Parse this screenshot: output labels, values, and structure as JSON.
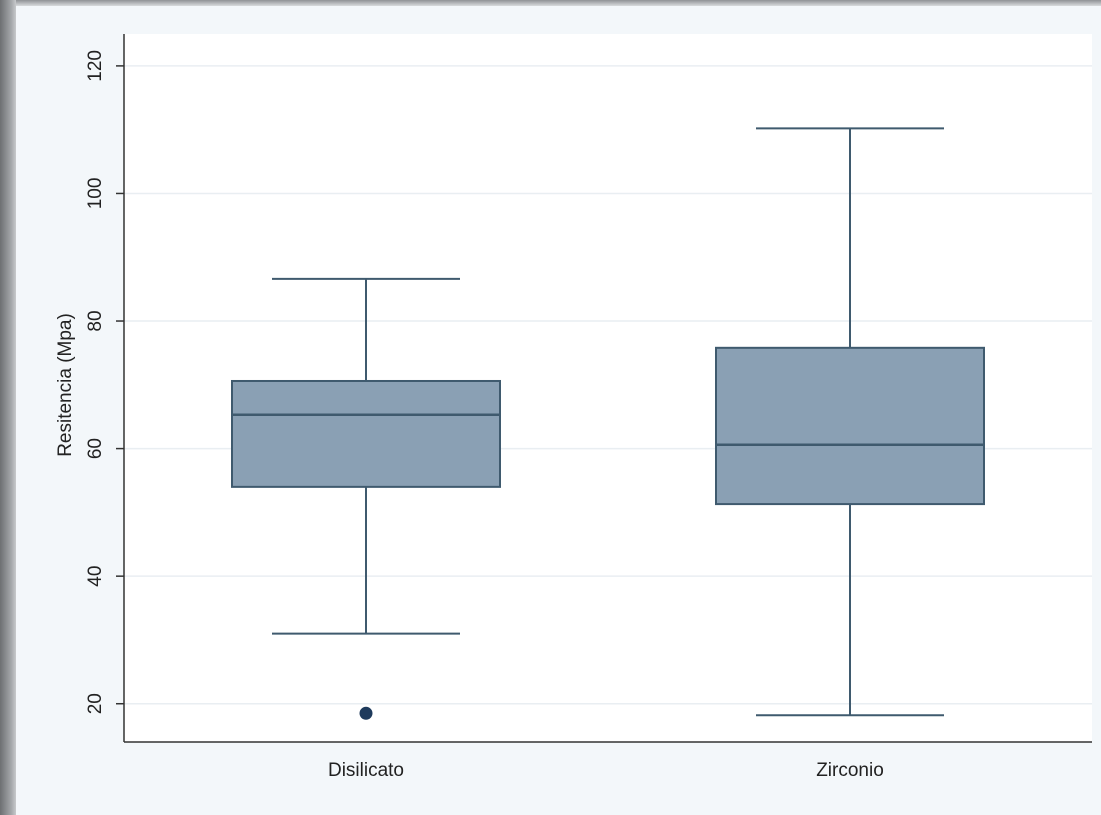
{
  "chart_data": {
    "type": "box",
    "ylabel": "Resitencia (Mpa)",
    "xlabel": "",
    "ylim": [
      14,
      125
    ],
    "yticks": [
      20,
      40,
      60,
      80,
      100,
      120
    ],
    "grid": true,
    "box_color": "#8aa0b4",
    "line_color": "#3f5a6e",
    "categories": [
      "Disilicato",
      "Zirconio"
    ],
    "series": [
      {
        "category": "Disilicato",
        "whisker_low": 31,
        "q1": 54,
        "median": 65.3,
        "q3": 70.6,
        "whisker_high": 86.6,
        "outliers": [
          18.5
        ]
      },
      {
        "category": "Zirconio",
        "whisker_low": 18.2,
        "q1": 51.3,
        "median": 60.6,
        "q3": 75.8,
        "whisker_high": 110.2,
        "outliers": []
      }
    ]
  }
}
